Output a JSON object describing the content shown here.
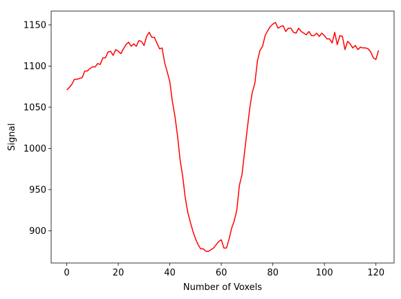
{
  "chart_data": {
    "type": "line",
    "title": "",
    "xlabel": "Number of Voxels",
    "ylabel": "Signal",
    "xlim": [
      -6.05,
      127.05
    ],
    "ylim": [
      860.8,
      1166.8
    ],
    "xticks": [
      0,
      20,
      40,
      60,
      80,
      100,
      120
    ],
    "yticks": [
      900,
      950,
      1000,
      1050,
      1100,
      1150
    ],
    "grid": false,
    "legend": "none",
    "series": [
      {
        "color": "#ff0000",
        "x": [
          0,
          1,
          2,
          3,
          4,
          5,
          6,
          7,
          8,
          9,
          10,
          11,
          12,
          13,
          14,
          15,
          16,
          17,
          18,
          19,
          20,
          21,
          22,
          23,
          24,
          25,
          26,
          27,
          28,
          29,
          30,
          31,
          32,
          33,
          34,
          35,
          36,
          37,
          38,
          39,
          40,
          41,
          42,
          43,
          44,
          45,
          46,
          47,
          48,
          49,
          50,
          51,
          52,
          53,
          54,
          55,
          56,
          57,
          58,
          59,
          60,
          61,
          62,
          63,
          64,
          65,
          66,
          67,
          68,
          69,
          70,
          71,
          72,
          73,
          74,
          75,
          76,
          77,
          78,
          79,
          80,
          81,
          82,
          83,
          84,
          85,
          86,
          87,
          88,
          89,
          90,
          91,
          92,
          93,
          94,
          95,
          96,
          97,
          98,
          99,
          100,
          101,
          102,
          103,
          104,
          105,
          106,
          107,
          108,
          109,
          110,
          111,
          112,
          113,
          114,
          115,
          116,
          117,
          118,
          119,
          120,
          121
        ],
        "y": [
          1071,
          1074,
          1078,
          1084,
          1084,
          1085,
          1086,
          1094,
          1094,
          1097,
          1099,
          1099,
          1103,
          1102,
          1110,
          1110,
          1117,
          1118,
          1113,
          1120,
          1118,
          1115,
          1121,
          1126,
          1129,
          1124,
          1127,
          1124,
          1131,
          1130,
          1125,
          1136,
          1141,
          1135,
          1135,
          1128,
          1121,
          1122,
          1104,
          1093,
          1081,
          1057,
          1039,
          1015,
          986,
          966,
          940,
          922,
          910,
          899,
          890,
          883,
          878,
          878,
          875,
          875,
          877,
          879,
          883,
          887,
          889,
          879,
          879,
          890,
          903,
          912,
          925,
          955,
          968,
          995,
          1022,
          1048,
          1068,
          1079,
          1106,
          1119,
          1124,
          1137,
          1143,
          1148,
          1151,
          1153,
          1146,
          1148,
          1149,
          1142,
          1146,
          1146,
          1141,
          1140,
          1146,
          1142,
          1140,
          1138,
          1142,
          1137,
          1137,
          1140,
          1136,
          1140,
          1137,
          1133,
          1133,
          1128,
          1141,
          1126,
          1137,
          1136,
          1120,
          1130,
          1127,
          1122,
          1125,
          1120,
          1123,
          1122,
          1122,
          1121,
          1117,
          1110,
          1108,
          1119
        ]
      }
    ]
  }
}
